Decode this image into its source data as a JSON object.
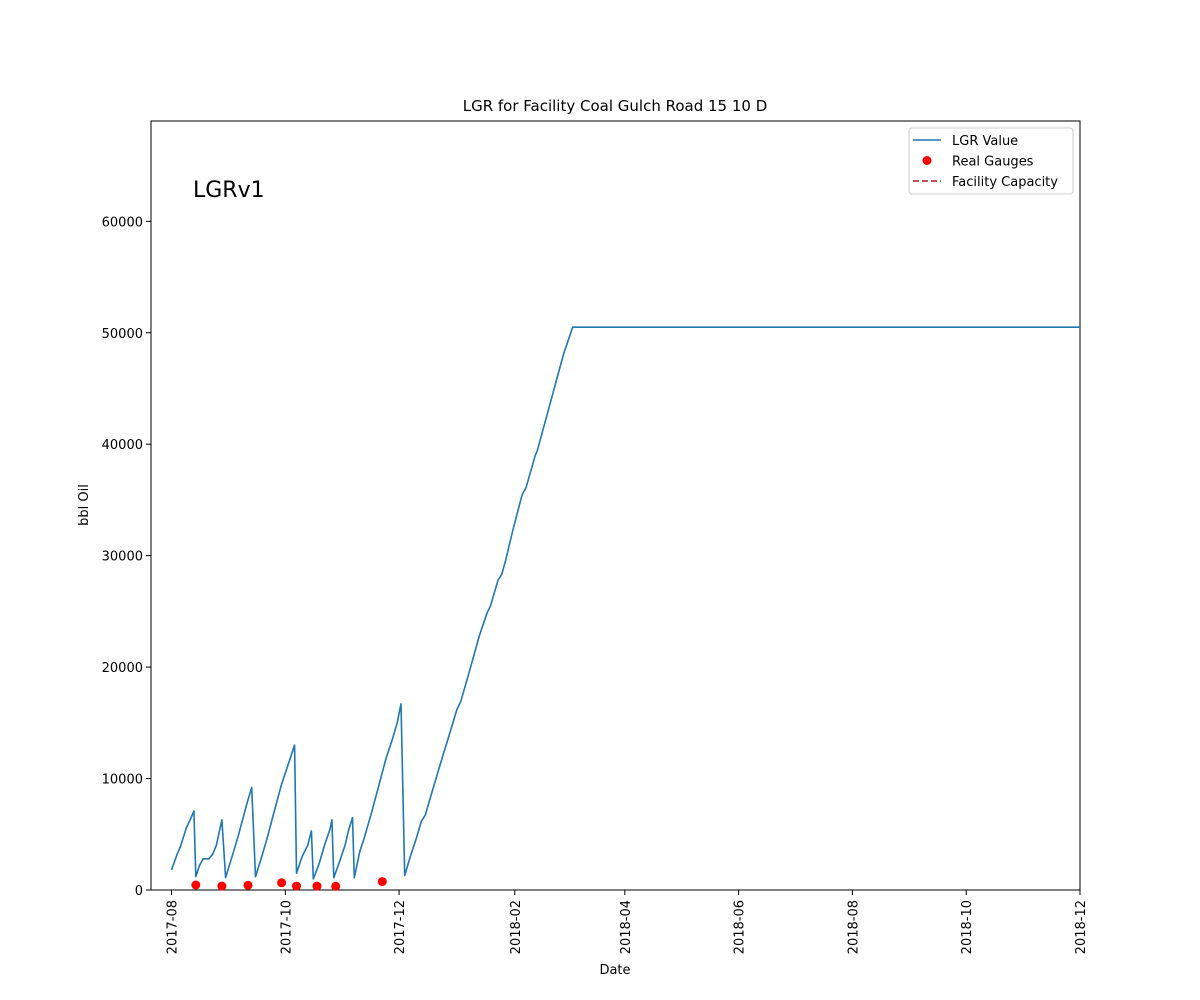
{
  "chart_data": {
    "type": "line",
    "title": "LGR for Facility Coal Gulch Road 15 10 D",
    "xlabel": "Date",
    "ylabel": "bbl Oil",
    "annotation": "LGRv1",
    "xlim": [
      "2017-07-21",
      "2018-12-01"
    ],
    "ylim": [
      0,
      69000
    ],
    "x_ticks": [
      "2017-08",
      "2017-10",
      "2017-12",
      "2018-02",
      "2018-04",
      "2018-06",
      "2018-08",
      "2018-10",
      "2018-12"
    ],
    "y_ticks": [
      0,
      10000,
      20000,
      30000,
      40000,
      50000,
      60000
    ],
    "grid": false,
    "legend_position": "top-right",
    "series": [
      {
        "name": "LGR Value",
        "kind": "line",
        "color": "#1f77b4",
        "points": [
          [
            "2017-08-01",
            1800
          ],
          [
            "2017-08-04",
            3200
          ],
          [
            "2017-08-06",
            4000
          ],
          [
            "2017-08-09",
            5600
          ],
          [
            "2017-08-11",
            6300
          ],
          [
            "2017-08-13",
            7100
          ],
          [
            "2017-08-14",
            1200
          ],
          [
            "2017-08-16",
            2200
          ],
          [
            "2017-08-18",
            2800
          ],
          [
            "2017-08-21",
            2800
          ],
          [
            "2017-08-23",
            3200
          ],
          [
            "2017-08-25",
            4000
          ],
          [
            "2017-08-28",
            6300
          ],
          [
            "2017-08-30",
            1100
          ],
          [
            "2017-09-03",
            3300
          ],
          [
            "2017-09-06",
            5000
          ],
          [
            "2017-09-10",
            7500
          ],
          [
            "2017-09-13",
            9200
          ],
          [
            "2017-09-15",
            1200
          ],
          [
            "2017-09-18",
            2800
          ],
          [
            "2017-09-21",
            4500
          ],
          [
            "2017-09-25",
            7000
          ],
          [
            "2017-09-29",
            9500
          ],
          [
            "2017-10-04",
            12000
          ],
          [
            "2017-10-06",
            13000
          ],
          [
            "2017-10-07",
            1500
          ],
          [
            "2017-10-10",
            3000
          ],
          [
            "2017-10-13",
            4000
          ],
          [
            "2017-10-15",
            5300
          ],
          [
            "2017-10-16",
            1000
          ],
          [
            "2017-10-19",
            2300
          ],
          [
            "2017-10-22",
            4000
          ],
          [
            "2017-10-25",
            5500
          ],
          [
            "2017-10-26",
            6300
          ],
          [
            "2017-10-27",
            1100
          ],
          [
            "2017-10-30",
            2500
          ],
          [
            "2017-11-02",
            4000
          ],
          [
            "2017-11-04",
            5400
          ],
          [
            "2017-11-06",
            6500
          ],
          [
            "2017-11-07",
            1100
          ],
          [
            "2017-11-10",
            3500
          ],
          [
            "2017-11-12",
            4500
          ],
          [
            "2017-11-16",
            6800
          ],
          [
            "2017-11-20",
            9300
          ],
          [
            "2017-11-24",
            11800
          ],
          [
            "2017-11-27",
            13300
          ],
          [
            "2017-11-30",
            15000
          ],
          [
            "2017-12-02",
            16700
          ],
          [
            "2017-12-04",
            1300
          ],
          [
            "2017-12-07",
            3000
          ],
          [
            "2017-12-10",
            4500
          ],
          [
            "2017-12-13",
            6200
          ],
          [
            "2017-12-15",
            6700
          ],
          [
            "2017-12-19",
            9000
          ],
          [
            "2017-12-24",
            11800
          ],
          [
            "2017-12-28",
            14000
          ],
          [
            "2018-01-01",
            16200
          ],
          [
            "2018-01-03",
            16900
          ],
          [
            "2018-01-08",
            19800
          ],
          [
            "2018-01-13",
            22800
          ],
          [
            "2018-01-17",
            24800
          ],
          [
            "2018-01-19",
            25500
          ],
          [
            "2018-01-23",
            27800
          ],
          [
            "2018-01-25",
            28300
          ],
          [
            "2018-01-27",
            29500
          ],
          [
            "2018-01-31",
            32300
          ],
          [
            "2018-02-05",
            35500
          ],
          [
            "2018-02-07",
            36100
          ],
          [
            "2018-02-12",
            39000
          ],
          [
            "2018-02-13",
            39400
          ],
          [
            "2018-02-21",
            44300
          ],
          [
            "2018-02-27",
            48000
          ],
          [
            "2018-03-04",
            50500
          ],
          [
            "2018-12-01",
            50500
          ]
        ]
      },
      {
        "name": "Real Gauges",
        "kind": "scatter",
        "color": "#ff0000",
        "points": [
          [
            "2017-08-14",
            450
          ],
          [
            "2017-08-28",
            350
          ],
          [
            "2017-09-11",
            420
          ],
          [
            "2017-09-29",
            650
          ],
          [
            "2017-10-07",
            350
          ],
          [
            "2017-10-18",
            350
          ],
          [
            "2017-10-28",
            330
          ],
          [
            "2017-11-22",
            750
          ]
        ]
      },
      {
        "name": "Facility Capacity",
        "kind": "dashed-line",
        "color": "#b2182b",
        "points": []
      }
    ]
  }
}
